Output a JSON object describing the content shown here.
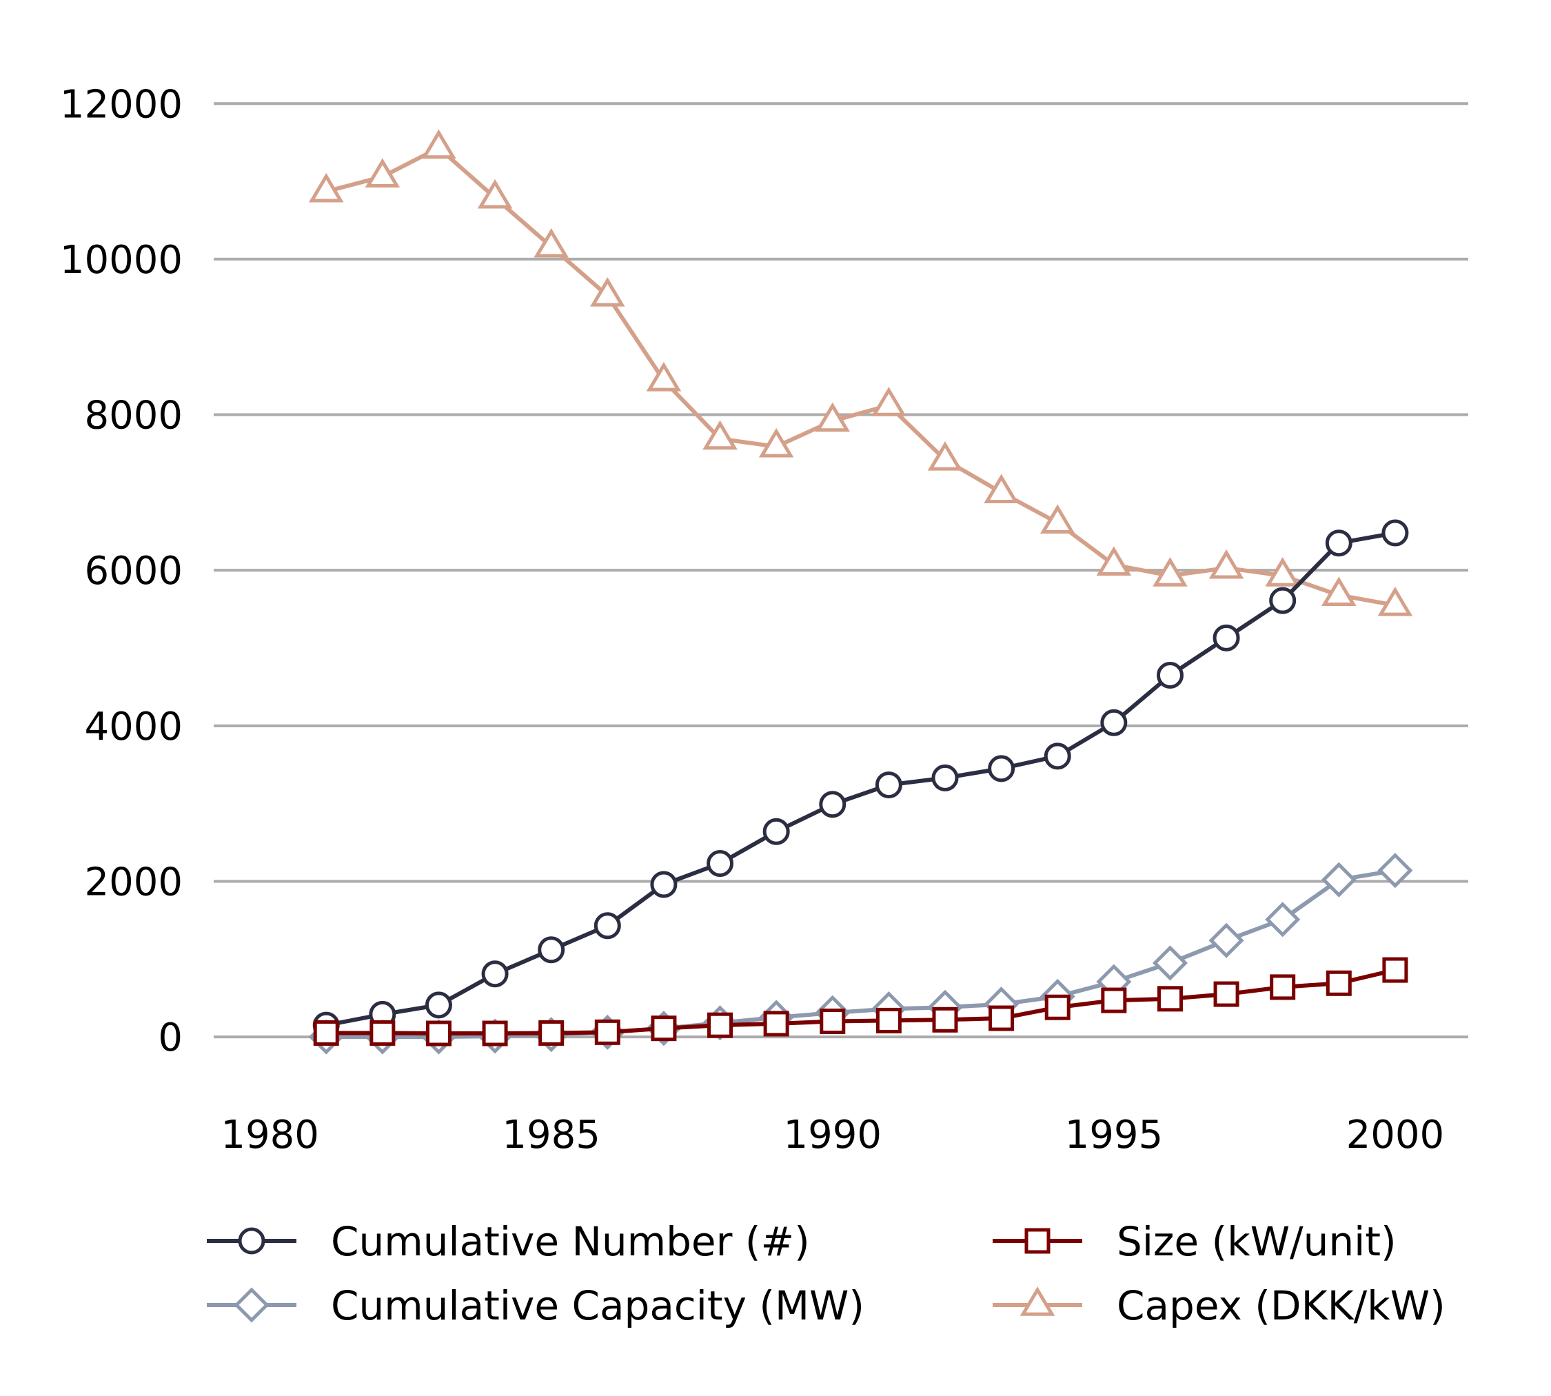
{
  "chart_data": {
    "type": "line",
    "title": "",
    "xlabel": "",
    "ylabel": "",
    "xlim": [
      1979,
      2001.3
    ],
    "ylim": [
      -850,
      12800
    ],
    "x_ticks": [
      1980,
      1985,
      1990,
      1995,
      2000
    ],
    "y_ticks": [
      0,
      2000,
      4000,
      6000,
      8000,
      10000,
      12000
    ],
    "grid": "horizontal",
    "legend": "bottom",
    "x": [
      1981,
      1982,
      1983,
      1984,
      1985,
      1986,
      1987,
      1988,
      1989,
      1990,
      1991,
      1992,
      1993,
      1994,
      1995,
      1996,
      1997,
      1998,
      1999,
      2000
    ],
    "series": [
      {
        "name": "Cumulative Number (#)",
        "color": "#2b2d42",
        "marker": "circle",
        "values": [
          150,
          290,
          410,
          810,
          1120,
          1430,
          1960,
          2230,
          2640,
          2990,
          3240,
          3330,
          3450,
          3610,
          4040,
          4650,
          5130,
          5610,
          6350,
          6480
        ]
      },
      {
        "name": "Cumulative Capacity (MW)",
        "color": "#8d99ae",
        "marker": "diamond",
        "values": [
          0,
          0,
          0,
          10,
          30,
          60,
          110,
          180,
          250,
          310,
          360,
          380,
          420,
          520,
          710,
          950,
          1240,
          1510,
          2020,
          2140
        ]
      },
      {
        "name": "Size (kW/unit)",
        "color": "#7a0000",
        "marker": "square",
        "values": [
          50,
          50,
          45,
          45,
          50,
          60,
          110,
          150,
          170,
          200,
          210,
          220,
          240,
          380,
          470,
          490,
          550,
          640,
          690,
          860
        ]
      },
      {
        "name": "Capex (DKK/kW)",
        "color": "#d4a08a",
        "marker": "triangle",
        "values": [
          10870,
          11060,
          11430,
          10790,
          10160,
          9530,
          8440,
          7690,
          7590,
          7920,
          8120,
          7420,
          7000,
          6610,
          6070,
          5930,
          6030,
          5930,
          5680,
          5550
        ]
      }
    ]
  }
}
